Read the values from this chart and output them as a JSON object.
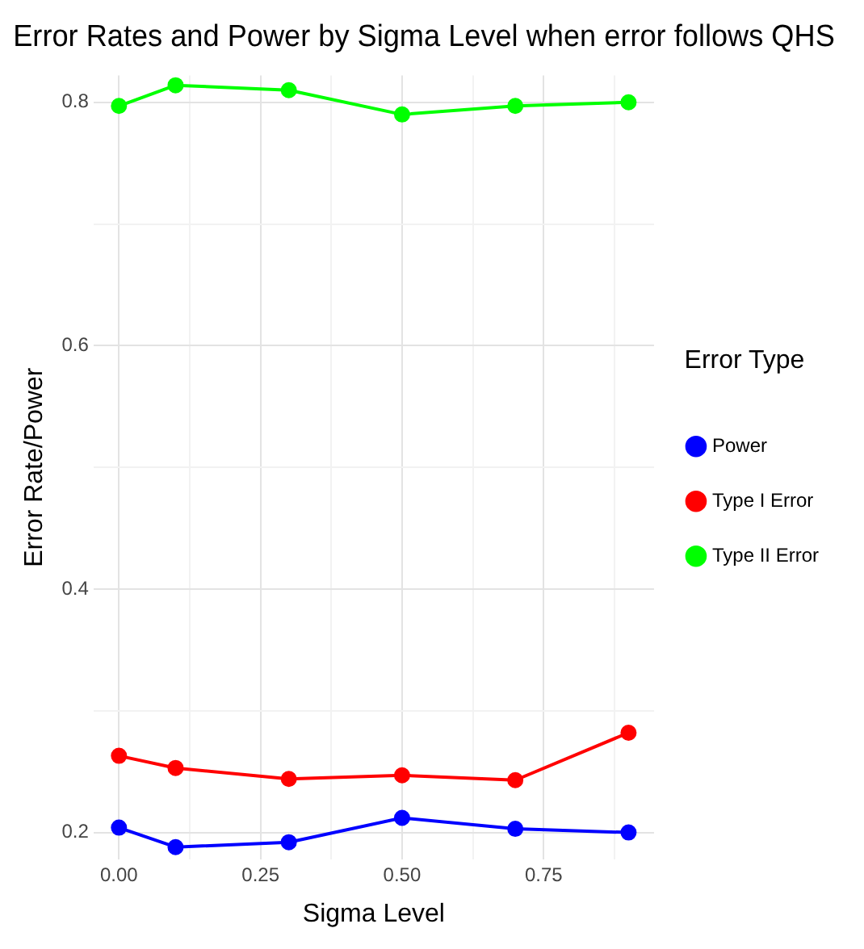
{
  "chart_data": {
    "type": "line",
    "title": "Error Rates and Power by Sigma Level when error follows QHS",
    "xlabel": "Sigma Level",
    "ylabel": "Error Rate/Power",
    "legend_title": "Error Type",
    "x": [
      0,
      0.1,
      0.3,
      0.5,
      0.7,
      0.9
    ],
    "series": [
      {
        "name": "Power",
        "color": "#0000ff",
        "values": [
          0.204,
          0.188,
          0.192,
          0.212,
          0.203,
          0.2
        ]
      },
      {
        "name": "Type I Error",
        "color": "#ff0000",
        "values": [
          0.263,
          0.253,
          0.244,
          0.247,
          0.243,
          0.282
        ]
      },
      {
        "name": "Type II Error",
        "color": "#00ff00",
        "values": [
          0.797,
          0.814,
          0.81,
          0.79,
          0.797,
          0.8
        ]
      }
    ],
    "xlim": [
      -0.045,
      0.945
    ],
    "ylim": [
      0.178,
      0.822
    ],
    "xticks": [
      {
        "value": 0,
        "label": "0.00"
      },
      {
        "value": 0.125,
        "label": null
      },
      {
        "value": 0.25,
        "label": "0.25"
      },
      {
        "value": 0.375,
        "label": null
      },
      {
        "value": 0.5,
        "label": "0.50"
      },
      {
        "value": 0.625,
        "label": null
      },
      {
        "value": 0.75,
        "label": "0.75"
      },
      {
        "value": 0.875,
        "label": null
      }
    ],
    "yticks": [
      0.2,
      {
        "value": 0.3,
        "label": null
      },
      0.4,
      {
        "value": 0.5,
        "label": null
      },
      0.6,
      {
        "value": 0.7,
        "label": null
      },
      0.8
    ],
    "grid": true,
    "legend": "right",
    "marker": "circle",
    "line_style": "solid"
  }
}
